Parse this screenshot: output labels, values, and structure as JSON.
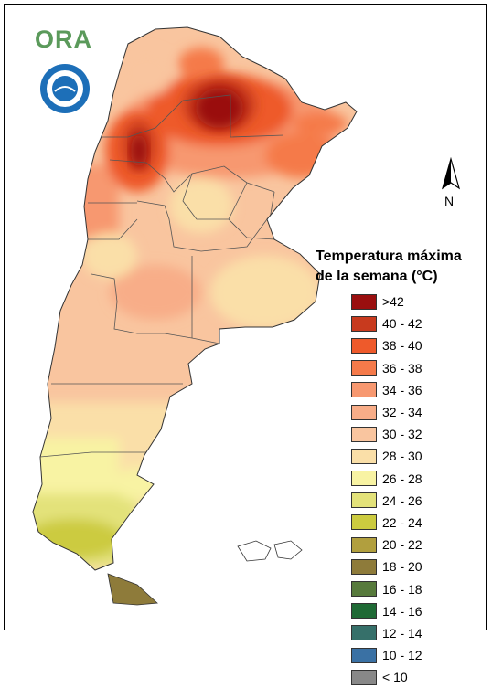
{
  "logo": {
    "text": "ORA"
  },
  "seal": {
    "icon": "national-seal-icon",
    "colors": {
      "ring": "#1d6fb8",
      "inner": "#ffffff"
    }
  },
  "north_arrow": {
    "label": "N"
  },
  "legend": {
    "title_line1": "Temperatura máxima",
    "title_line2": "de la semana (°C)",
    "items": [
      {
        "label": ">42",
        "color": "#9a0f0f"
      },
      {
        "label": "40 - 42",
        "color": "#c83a1e"
      },
      {
        "label": "38 - 40",
        "color": "#ee5a2b"
      },
      {
        "label": "36 - 38",
        "color": "#f57a4a"
      },
      {
        "label": "34 - 36",
        "color": "#f79870"
      },
      {
        "label": "32 - 34",
        "color": "#f8ad88"
      },
      {
        "label": "30 - 32",
        "color": "#f9c59f"
      },
      {
        "label": "28 - 30",
        "color": "#fadfa8"
      },
      {
        "label": "26 - 28",
        "color": "#f8f3a3"
      },
      {
        "label": "24 - 26",
        "color": "#e3e27a"
      },
      {
        "label": "22 - 24",
        "color": "#cccb3f"
      },
      {
        "label": "20 - 22",
        "color": "#b19f3e"
      },
      {
        "label": "18 - 20",
        "color": "#8e7b3a"
      },
      {
        "label": "16 - 18",
        "color": "#577a3c"
      },
      {
        "label": "14 - 16",
        "color": "#1f6a35"
      },
      {
        "label": "12 - 14",
        "color": "#36706a"
      },
      {
        "label": "10 - 12",
        "color": "#3a71a4"
      },
      {
        "label": "< 10",
        "color": "#888888"
      }
    ]
  },
  "map": {
    "colors": {
      "base": "#f9c59f",
      "outline": "#333333",
      "provinces": "#555555"
    }
  }
}
